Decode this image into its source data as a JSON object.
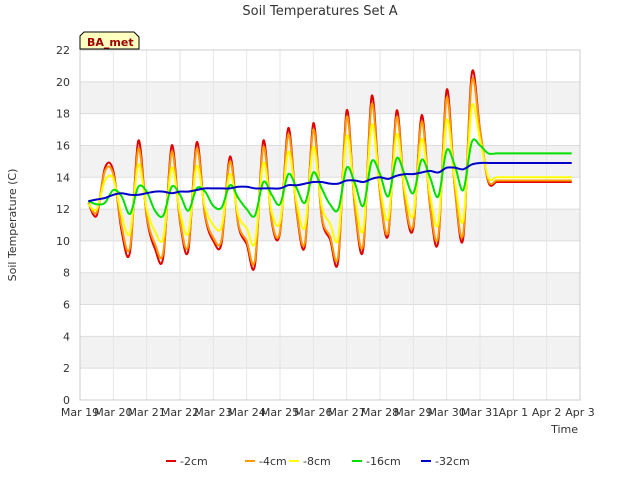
{
  "chart_data": {
    "type": "line",
    "title": "Soil Temperatures Set A",
    "xlabel": "Time",
    "ylabel": "Soil Temperature (C)",
    "badge": "BA_met",
    "x_ticks": [
      "Mar 19",
      "Mar 20",
      "Mar 21",
      "Mar 22",
      "Mar 23",
      "Mar 24",
      "Mar 25",
      "Mar 26",
      "Mar 27",
      "Mar 28",
      "Mar 29",
      "Mar 30",
      "Mar 31",
      "Apr 1",
      "Apr 2",
      "Apr 3"
    ],
    "y_ticks": [
      0,
      2,
      4,
      6,
      8,
      10,
      12,
      14,
      16,
      18,
      20,
      22
    ],
    "xlim": [
      "2024-03-19",
      "2024-04-03"
    ],
    "ylim": [
      0,
      22
    ],
    "grid": true,
    "legend_position": "bottom",
    "series": [
      {
        "name": "-2cm",
        "color": "#e00000",
        "x": [
          "2024-03-19 06:00",
          "2024-03-19 12:00",
          "2024-03-19 18:00",
          "2024-03-20 00:00",
          "2024-03-20 06:00",
          "2024-03-20 12:00",
          "2024-03-20 18:00",
          "2024-03-21 00:00",
          "2024-03-21 06:00",
          "2024-03-21 12:00",
          "2024-03-21 18:00",
          "2024-03-22 00:00",
          "2024-03-22 06:00",
          "2024-03-22 12:00",
          "2024-03-22 18:00",
          "2024-03-23 00:00",
          "2024-03-23 06:00",
          "2024-03-23 12:00",
          "2024-03-23 18:00",
          "2024-03-24 00:00",
          "2024-03-24 06:00",
          "2024-03-24 12:00",
          "2024-03-24 18:00",
          "2024-03-25 00:00",
          "2024-03-25 06:00",
          "2024-03-25 12:00",
          "2024-03-25 18:00",
          "2024-03-26 00:00",
          "2024-03-26 06:00",
          "2024-03-26 12:00",
          "2024-03-26 18:00",
          "2024-03-27 00:00",
          "2024-03-27 06:00",
          "2024-03-27 12:00",
          "2024-03-27 18:00",
          "2024-03-28 00:00",
          "2024-03-28 06:00",
          "2024-03-28 12:00",
          "2024-03-28 18:00",
          "2024-03-29 00:00",
          "2024-03-29 06:00",
          "2024-03-29 12:00",
          "2024-03-29 18:00",
          "2024-03-30 00:00",
          "2024-03-30 06:00",
          "2024-03-30 12:00",
          "2024-03-30 18:00",
          "2024-03-31 00:00",
          "2024-03-31 06:00",
          "2024-03-31 12:00",
          "2024-03-31 18:00",
          "2024-04-01 00:00",
          "2024-04-01 06:00",
          "2024-04-01 12:00",
          "2024-04-01 18:00",
          "2024-04-02 00:00",
          "2024-04-02 06:00",
          "2024-04-02 12:00",
          "2024-04-02 18:00"
        ],
        "values": [
          12.4,
          11.6,
          14.6,
          14.4,
          10.6,
          9.3,
          16.3,
          11.5,
          9.5,
          9.0,
          16.0,
          11.2,
          9.4,
          16.2,
          11.6,
          10.0,
          9.9,
          15.3,
          11.0,
          9.8,
          8.5,
          16.3,
          11.2,
          10.5,
          17.1,
          11.8,
          9.7,
          17.4,
          11.5,
          10.1,
          8.8,
          18.2,
          12.0,
          9.5,
          19.1,
          13.0,
          10.4,
          18.2,
          12.5,
          10.8,
          17.9,
          12.2,
          10.0,
          19.5,
          13.2,
          10.2,
          20.5,
          17.0,
          13.7,
          13.7,
          13.7,
          13.7,
          13.7,
          13.7,
          13.7,
          13.7,
          13.7,
          13.7,
          13.7
        ]
      },
      {
        "name": "-4cm",
        "color": "#ff9900",
        "x": [
          "2024-03-19 06:00",
          "2024-03-19 12:00",
          "2024-03-19 18:00",
          "2024-03-20 00:00",
          "2024-03-20 06:00",
          "2024-03-20 12:00",
          "2024-03-20 18:00",
          "2024-03-21 00:00",
          "2024-03-21 06:00",
          "2024-03-21 12:00",
          "2024-03-21 18:00",
          "2024-03-22 00:00",
          "2024-03-22 06:00",
          "2024-03-22 12:00",
          "2024-03-22 18:00",
          "2024-03-23 00:00",
          "2024-03-23 06:00",
          "2024-03-23 12:00",
          "2024-03-23 18:00",
          "2024-03-24 00:00",
          "2024-03-24 06:00",
          "2024-03-24 12:00",
          "2024-03-24 18:00",
          "2024-03-25 00:00",
          "2024-03-25 06:00",
          "2024-03-25 12:00",
          "2024-03-25 18:00",
          "2024-03-26 00:00",
          "2024-03-26 06:00",
          "2024-03-26 12:00",
          "2024-03-26 18:00",
          "2024-03-27 00:00",
          "2024-03-27 06:00",
          "2024-03-27 12:00",
          "2024-03-27 18:00",
          "2024-03-28 00:00",
          "2024-03-28 06:00",
          "2024-03-28 12:00",
          "2024-03-28 18:00",
          "2024-03-29 00:00",
          "2024-03-29 06:00",
          "2024-03-29 12:00",
          "2024-03-29 18:00",
          "2024-03-30 00:00",
          "2024-03-30 06:00",
          "2024-03-30 12:00",
          "2024-03-30 18:00",
          "2024-03-31 00:00",
          "2024-03-31 06:00",
          "2024-03-31 12:00",
          "2024-03-31 18:00",
          "2024-04-01 00:00",
          "2024-04-01 06:00",
          "2024-04-01 12:00",
          "2024-04-01 18:00",
          "2024-04-02 00:00",
          "2024-04-02 06:00",
          "2024-04-02 12:00",
          "2024-04-02 18:00"
        ],
        "values": [
          12.4,
          11.8,
          14.4,
          14.2,
          10.9,
          9.6,
          15.8,
          11.6,
          9.8,
          9.3,
          15.6,
          11.3,
          9.7,
          15.8,
          11.7,
          10.2,
          10.1,
          15.0,
          11.1,
          10.0,
          8.8,
          15.9,
          11.3,
          10.6,
          16.7,
          11.9,
          9.9,
          17.0,
          11.6,
          10.3,
          9.1,
          17.8,
          12.1,
          9.8,
          18.6,
          13.0,
          10.6,
          17.8,
          12.6,
          11.0,
          17.5,
          12.3,
          10.3,
          19.0,
          13.2,
          10.5,
          20.0,
          16.9,
          13.8,
          13.8,
          13.8,
          13.8,
          13.8,
          13.8,
          13.8,
          13.8,
          13.8,
          13.8,
          13.8
        ]
      },
      {
        "name": "-8cm",
        "color": "#ffff00",
        "x": [
          "2024-03-19 06:00",
          "2024-03-19 12:00",
          "2024-03-19 18:00",
          "2024-03-20 00:00",
          "2024-03-20 06:00",
          "2024-03-20 12:00",
          "2024-03-20 18:00",
          "2024-03-21 00:00",
          "2024-03-21 06:00",
          "2024-03-21 12:00",
          "2024-03-21 18:00",
          "2024-03-22 00:00",
          "2024-03-22 06:00",
          "2024-03-22 12:00",
          "2024-03-22 18:00",
          "2024-03-23 00:00",
          "2024-03-23 06:00",
          "2024-03-23 12:00",
          "2024-03-23 18:00",
          "2024-03-24 00:00",
          "2024-03-24 06:00",
          "2024-03-24 12:00",
          "2024-03-24 18:00",
          "2024-03-25 00:00",
          "2024-03-25 06:00",
          "2024-03-25 12:00",
          "2024-03-25 18:00",
          "2024-03-26 00:00",
          "2024-03-26 06:00",
          "2024-03-26 12:00",
          "2024-03-26 18:00",
          "2024-03-27 00:00",
          "2024-03-27 06:00",
          "2024-03-27 12:00",
          "2024-03-27 18:00",
          "2024-03-28 00:00",
          "2024-03-28 06:00",
          "2024-03-28 12:00",
          "2024-03-28 18:00",
          "2024-03-29 00:00",
          "2024-03-29 06:00",
          "2024-03-29 12:00",
          "2024-03-29 18:00",
          "2024-03-30 00:00",
          "2024-03-30 06:00",
          "2024-03-30 12:00",
          "2024-03-30 18:00",
          "2024-03-31 00:00",
          "2024-03-31 06:00",
          "2024-03-31 12:00",
          "2024-03-31 18:00",
          "2024-04-01 00:00",
          "2024-04-01 06:00",
          "2024-04-01 12:00",
          "2024-04-01 18:00",
          "2024-04-02 00:00",
          "2024-04-02 06:00",
          "2024-04-02 12:00",
          "2024-04-02 18:00"
        ],
        "values": [
          12.3,
          12.0,
          13.8,
          13.9,
          11.6,
          10.5,
          14.8,
          12.0,
          10.6,
          10.2,
          14.6,
          11.8,
          10.5,
          14.7,
          12.1,
          11.0,
          10.9,
          14.2,
          11.6,
          10.8,
          9.9,
          14.9,
          11.8,
          11.2,
          15.6,
          12.4,
          10.9,
          15.9,
          12.2,
          11.1,
          10.2,
          16.6,
          12.7,
          10.7,
          17.3,
          13.4,
          11.4,
          16.7,
          13.1,
          11.6,
          16.4,
          12.9,
          11.1,
          17.6,
          13.7,
          11.3,
          18.4,
          16.4,
          14.0,
          14.0,
          14.0,
          14.0,
          14.0,
          14.0,
          14.0,
          14.0,
          14.0,
          14.0,
          14.0
        ]
      },
      {
        "name": "-16cm",
        "color": "#00e000",
        "x": [
          "2024-03-19 06:00",
          "2024-03-19 12:00",
          "2024-03-19 18:00",
          "2024-03-20 00:00",
          "2024-03-20 06:00",
          "2024-03-20 12:00",
          "2024-03-20 18:00",
          "2024-03-21 00:00",
          "2024-03-21 06:00",
          "2024-03-21 12:00",
          "2024-03-21 18:00",
          "2024-03-22 00:00",
          "2024-03-22 06:00",
          "2024-03-22 12:00",
          "2024-03-22 18:00",
          "2024-03-23 00:00",
          "2024-03-23 06:00",
          "2024-03-23 12:00",
          "2024-03-23 18:00",
          "2024-03-24 00:00",
          "2024-03-24 06:00",
          "2024-03-24 12:00",
          "2024-03-24 18:00",
          "2024-03-25 00:00",
          "2024-03-25 06:00",
          "2024-03-25 12:00",
          "2024-03-25 18:00",
          "2024-03-26 00:00",
          "2024-03-26 06:00",
          "2024-03-26 12:00",
          "2024-03-26 18:00",
          "2024-03-27 00:00",
          "2024-03-27 06:00",
          "2024-03-27 12:00",
          "2024-03-27 18:00",
          "2024-03-28 00:00",
          "2024-03-28 06:00",
          "2024-03-28 12:00",
          "2024-03-28 18:00",
          "2024-03-29 00:00",
          "2024-03-29 06:00",
          "2024-03-29 12:00",
          "2024-03-29 18:00",
          "2024-03-30 00:00",
          "2024-03-30 06:00",
          "2024-03-30 12:00",
          "2024-03-30 18:00",
          "2024-03-31 00:00",
          "2024-03-31 06:00",
          "2024-03-31 12:00",
          "2024-03-31 18:00",
          "2024-04-01 00:00",
          "2024-04-01 06:00",
          "2024-04-01 12:00",
          "2024-04-01 18:00",
          "2024-04-02 00:00",
          "2024-04-02 06:00",
          "2024-04-02 12:00",
          "2024-04-02 18:00"
        ],
        "values": [
          12.5,
          12.3,
          12.4,
          13.2,
          12.8,
          11.7,
          13.4,
          13.1,
          11.9,
          11.6,
          13.4,
          12.9,
          11.9,
          13.3,
          13.1,
          12.2,
          12.1,
          13.5,
          12.7,
          12.0,
          11.6,
          13.7,
          12.9,
          12.3,
          14.2,
          13.3,
          12.4,
          14.3,
          13.3,
          12.3,
          12.0,
          14.6,
          13.6,
          12.2,
          15.0,
          14.2,
          12.8,
          15.2,
          14.1,
          13.0,
          15.1,
          14.0,
          12.8,
          15.7,
          14.7,
          13.2,
          16.2,
          16.0,
          15.5,
          15.5,
          15.5,
          15.5,
          15.5,
          15.5,
          15.5,
          15.5,
          15.5,
          15.5,
          15.5
        ]
      },
      {
        "name": "-32cm",
        "color": "#0000c8",
        "x": [
          "2024-03-19 06:00",
          "2024-03-19 12:00",
          "2024-03-19 18:00",
          "2024-03-20 00:00",
          "2024-03-20 06:00",
          "2024-03-20 12:00",
          "2024-03-20 18:00",
          "2024-03-21 00:00",
          "2024-03-21 06:00",
          "2024-03-21 12:00",
          "2024-03-21 18:00",
          "2024-03-22 00:00",
          "2024-03-22 06:00",
          "2024-03-22 12:00",
          "2024-03-22 18:00",
          "2024-03-23 00:00",
          "2024-03-23 06:00",
          "2024-03-23 12:00",
          "2024-03-23 18:00",
          "2024-03-24 00:00",
          "2024-03-24 06:00",
          "2024-03-24 12:00",
          "2024-03-24 18:00",
          "2024-03-25 00:00",
          "2024-03-25 06:00",
          "2024-03-25 12:00",
          "2024-03-25 18:00",
          "2024-03-26 00:00",
          "2024-03-26 06:00",
          "2024-03-26 12:00",
          "2024-03-26 18:00",
          "2024-03-27 00:00",
          "2024-03-27 06:00",
          "2024-03-27 12:00",
          "2024-03-27 18:00",
          "2024-03-28 00:00",
          "2024-03-28 06:00",
          "2024-03-28 12:00",
          "2024-03-28 18:00",
          "2024-03-29 00:00",
          "2024-03-29 06:00",
          "2024-03-29 12:00",
          "2024-03-29 18:00",
          "2024-03-30 00:00",
          "2024-03-30 06:00",
          "2024-03-30 12:00",
          "2024-03-30 18:00",
          "2024-03-31 00:00",
          "2024-03-31 06:00",
          "2024-03-31 12:00",
          "2024-03-31 18:00",
          "2024-04-01 00:00",
          "2024-04-01 06:00",
          "2024-04-01 12:00",
          "2024-04-01 18:00",
          "2024-04-02 00:00",
          "2024-04-02 06:00",
          "2024-04-02 12:00",
          "2024-04-02 18:00"
        ],
        "values": [
          12.5,
          12.6,
          12.7,
          12.9,
          13.0,
          12.9,
          12.9,
          13.0,
          13.1,
          13.1,
          13.0,
          13.1,
          13.1,
          13.2,
          13.3,
          13.3,
          13.3,
          13.3,
          13.4,
          13.4,
          13.3,
          13.3,
          13.3,
          13.3,
          13.5,
          13.5,
          13.6,
          13.7,
          13.7,
          13.6,
          13.6,
          13.8,
          13.8,
          13.7,
          13.9,
          14.0,
          13.9,
          14.1,
          14.2,
          14.2,
          14.3,
          14.4,
          14.3,
          14.6,
          14.6,
          14.5,
          14.8,
          14.9,
          14.9,
          14.9,
          14.9,
          14.9,
          14.9,
          14.9,
          14.9,
          14.9,
          14.9,
          14.9,
          14.9
        ]
      }
    ]
  }
}
